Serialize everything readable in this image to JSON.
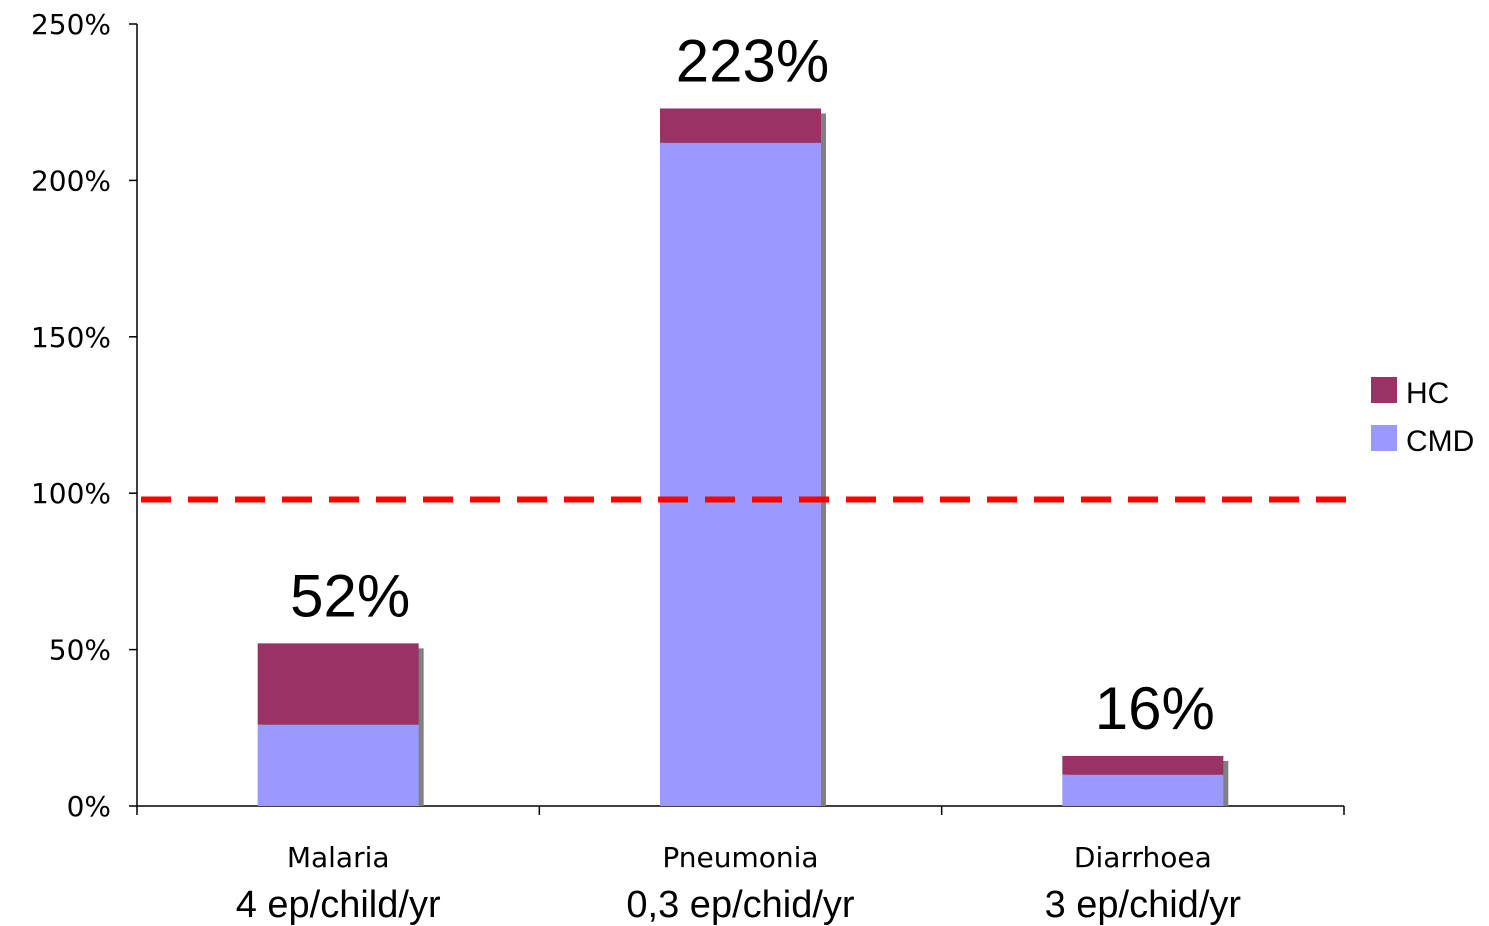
{
  "chart_data": {
    "type": "bar",
    "stacked": true,
    "categories": [
      "Malaria",
      "Pneumonia",
      "Diarrhoea"
    ],
    "category_sublabels": [
      "4 ep/child/yr",
      "0,3 ep/chid/yr",
      "3 ep/chid/yr"
    ],
    "series": [
      {
        "name": "CMD",
        "color": "#9999ff",
        "values": [
          26,
          212,
          10
        ]
      },
      {
        "name": "HC",
        "color": "#993366",
        "values": [
          26,
          11,
          6
        ]
      }
    ],
    "totals_labels": [
      "52%",
      "223%",
      "16%"
    ],
    "ylim": [
      0,
      250
    ],
    "y_ticks": [
      0,
      50,
      100,
      150,
      200,
      250
    ],
    "y_tick_labels": [
      "0%",
      "50%",
      "100%",
      "150%",
      "200%",
      "250%"
    ],
    "reference_line": {
      "value": 98,
      "color": "#ff0000",
      "style": "dashed"
    },
    "legend_position": "right",
    "grid": false
  }
}
